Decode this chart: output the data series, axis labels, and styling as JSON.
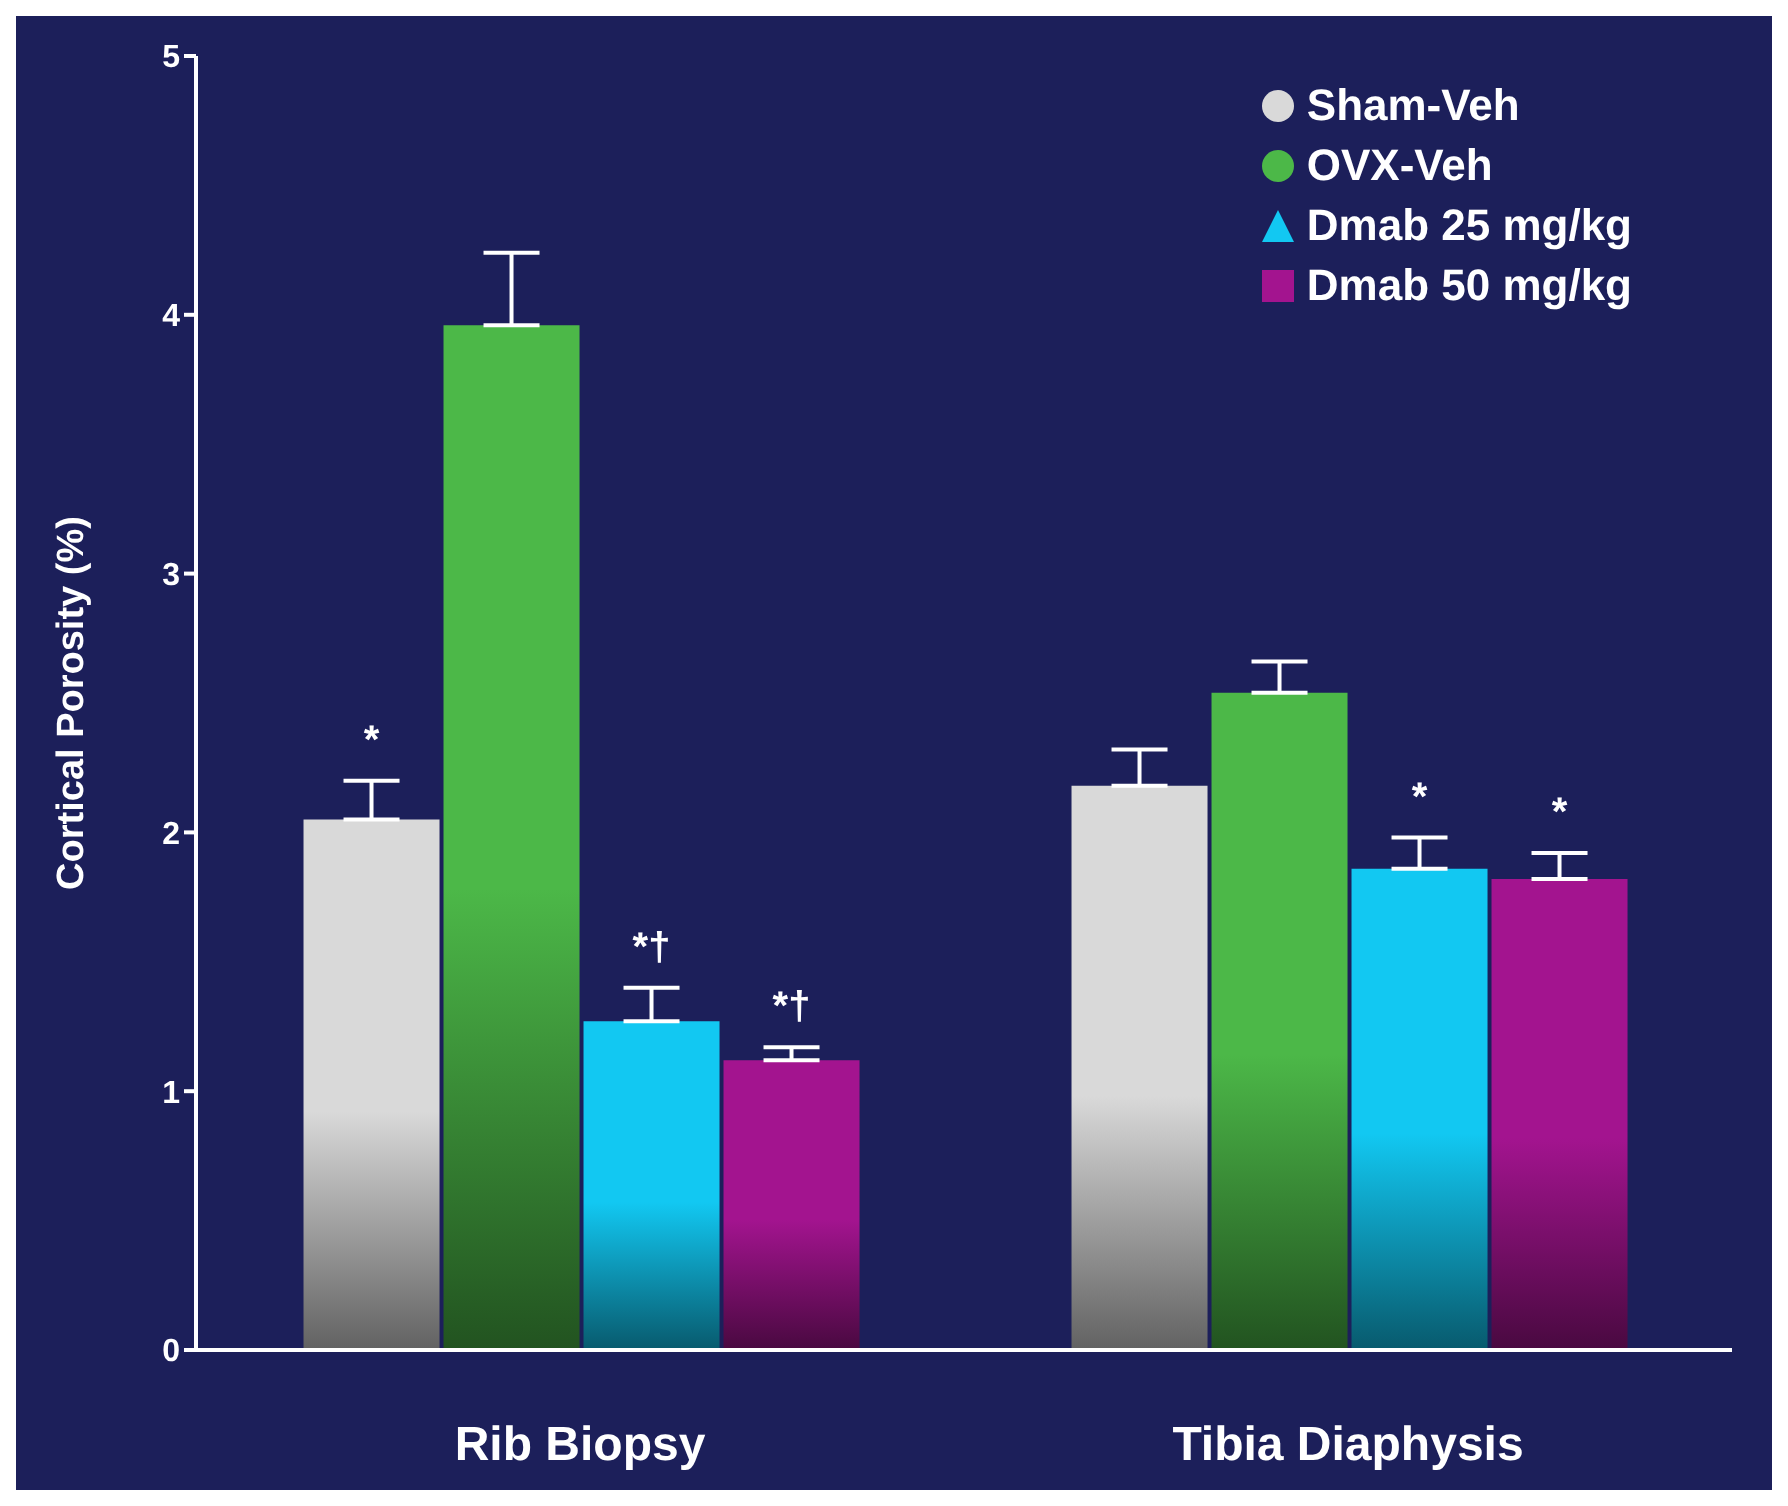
{
  "chart_data": {
    "type": "bar",
    "ylabel": "Cortical Porosity (%)",
    "categories": [
      "Rib Biopsy",
      "Tibia Diaphysis"
    ],
    "series": [
      {
        "name": "Sham-Veh",
        "color": "#d9d9d9",
        "marker": "circle",
        "values": [
          2.05,
          2.18
        ],
        "errors": [
          [
            2.05,
            2.2
          ],
          [
            2.18,
            2.32
          ]
        ],
        "value_labels": [
          "*",
          null
        ]
      },
      {
        "name": "OVX-Veh",
        "color": "#4cb848",
        "marker": "circle",
        "values": [
          3.96,
          2.54
        ],
        "errors": [
          [
            3.96,
            4.24
          ],
          [
            2.54,
            2.66
          ]
        ]
      },
      {
        "name": "Dmab 25 mg/kg",
        "color": "#12c8f2",
        "marker": "triangle",
        "values": [
          1.27,
          1.86
        ],
        "errors": [
          [
            1.27,
            1.4
          ],
          [
            1.86,
            1.98
          ]
        ],
        "value_labels": [
          "*†",
          "*"
        ]
      },
      {
        "name": "Dmab 50 mg/kg",
        "color": "#a3148f",
        "marker": "square",
        "values": [
          1.12,
          1.82
        ],
        "errors": [
          [
            1.12,
            1.17
          ],
          [
            1.82,
            1.92
          ]
        ],
        "value_labels": [
          "*†",
          "*"
        ]
      }
    ],
    "ylim": [
      0,
      5
    ],
    "yticks": [
      0,
      1,
      2,
      3,
      4,
      5
    ],
    "legend": "top right"
  }
}
